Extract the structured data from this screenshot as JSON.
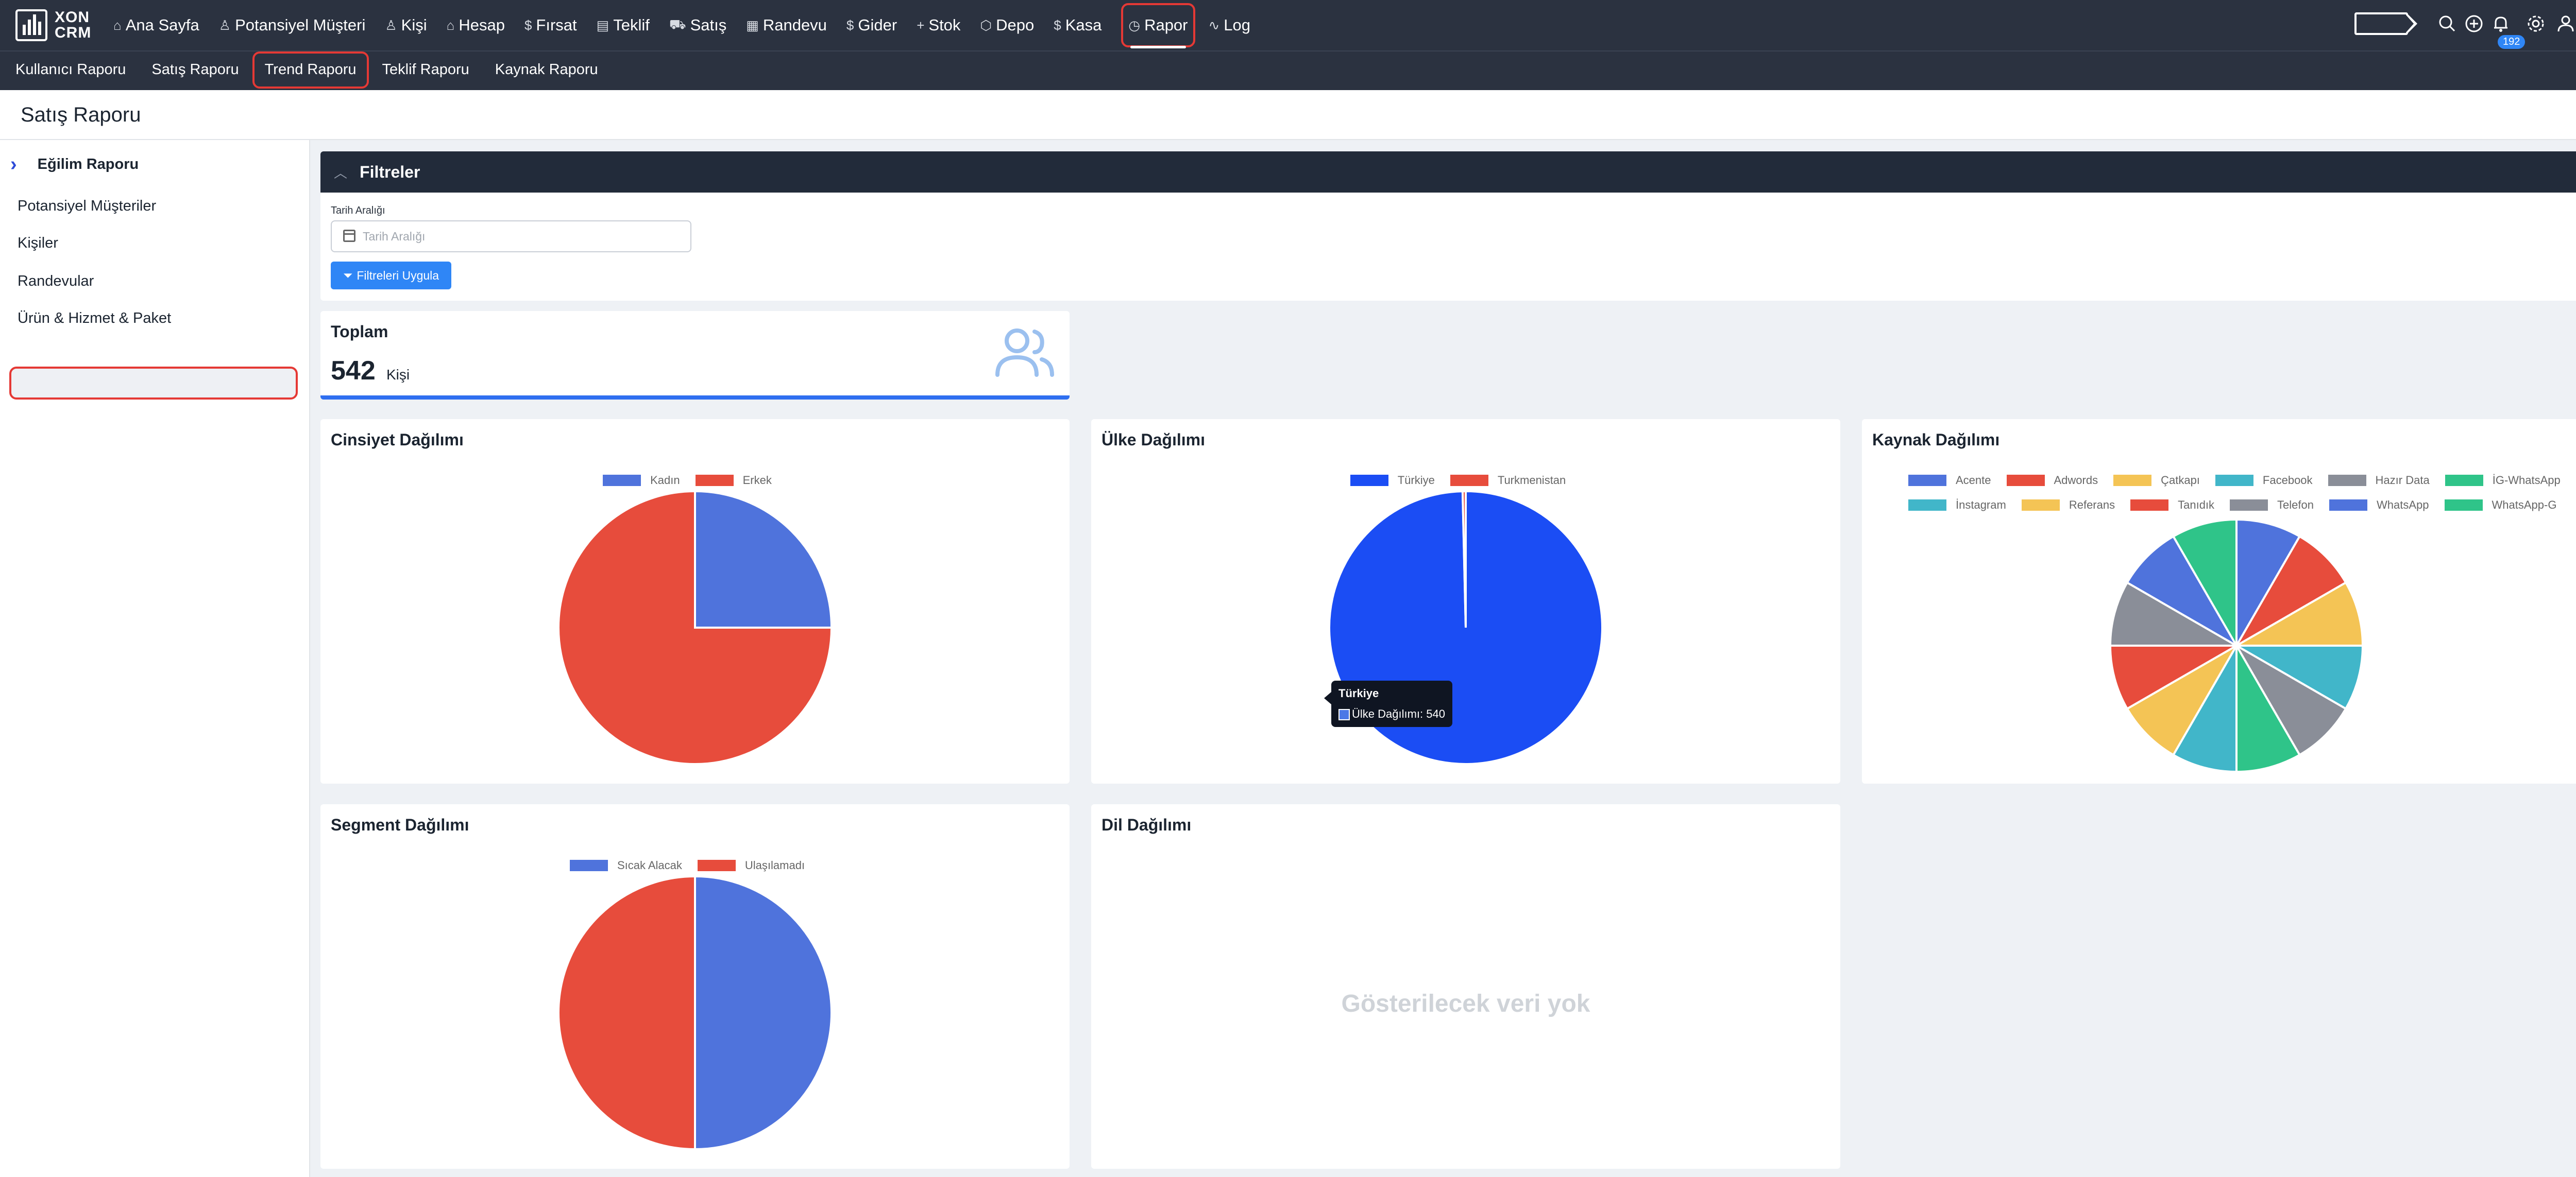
{
  "app": {
    "logo_text_1": "XON",
    "logo_text_2": "CRM"
  },
  "nav": {
    "items": [
      {
        "icon": "⌂",
        "label": "Ana Sayfa"
      },
      {
        "icon": "♙",
        "label": "Potansiyel Müşteri"
      },
      {
        "icon": "♙",
        "label": "Kişi"
      },
      {
        "icon": "⌂",
        "label": "Hesap"
      },
      {
        "icon": "$",
        "label": "Fırsat"
      },
      {
        "icon": "▤",
        "label": "Teklif"
      },
      {
        "icon": "⛟",
        "label": "Satış"
      },
      {
        "icon": "▦",
        "label": "Randevu"
      },
      {
        "icon": "$",
        "label": "Gider"
      },
      {
        "icon": "+",
        "label": "Stok"
      },
      {
        "icon": "⬡",
        "label": "Depo"
      },
      {
        "icon": "$",
        "label": "Kasa"
      },
      {
        "icon": "◷",
        "label": "Rapor"
      },
      {
        "icon": "∿",
        "label": "Log"
      }
    ],
    "notification_count": "192"
  },
  "subnav": {
    "items": [
      "Kullanıcı Raporu",
      "Satış Raporu",
      "Trend Raporu",
      "Teklif Raporu",
      "Kaynak Raporu"
    ]
  },
  "page": {
    "title": "Satış Raporu"
  },
  "sidebar": {
    "header": "Eğilim Raporu",
    "items": [
      "Potansiyel Müşteriler",
      "Kişiler",
      "Randevular",
      "Ürün & Hizmet & Paket"
    ]
  },
  "filters": {
    "title": "Filtreler",
    "date_label": "Tarih Aralığı",
    "date_placeholder": "Tarih Aralığı",
    "apply_button": "Filtreleri Uygula"
  },
  "total": {
    "title": "Toplam",
    "value": "542",
    "unit": "Kişi"
  },
  "colors": {
    "blue": "#4f73dc",
    "red": "#e74c3c",
    "yellow": "#f4c455",
    "cyan": "#41b6c9",
    "gray": "#8a8e98",
    "green": "#2fc489",
    "bright_blue": "#1b4df4"
  },
  "charts": {
    "gender": {
      "title": "Cinsiyet Dağılımı"
    },
    "country": {
      "title": "Ülke Dağılımı",
      "tooltip_title": "Türkiye",
      "tooltip_text": "Ülke Dağılımı: 540"
    },
    "source": {
      "title": "Kaynak Dağılımı"
    },
    "segment": {
      "title": "Segment Dağılımı"
    },
    "language": {
      "title": "Dil Dağılımı",
      "empty_text": "Gösterilecek veri yok"
    }
  },
  "chart_data": [
    {
      "type": "pie",
      "title": "Cinsiyet Dağılımı",
      "categories": [
        "Kadın",
        "Erkek"
      ],
      "values": [
        25,
        75
      ],
      "colors": [
        "#4f73dc",
        "#e74c3c"
      ]
    },
    {
      "type": "pie",
      "title": "Ülke Dağılımı",
      "categories": [
        "Türkiye",
        "Turkmenistan"
      ],
      "values": [
        540,
        2
      ],
      "colors": [
        "#1b4df4",
        "#e74c3c"
      ]
    },
    {
      "type": "pie",
      "title": "Kaynak Dağılımı",
      "categories": [
        "Acente",
        "Adwords",
        "Çatkapı",
        "Facebook",
        "Hazır Data",
        "İG-WhatsApp",
        "İnstagram",
        "Referans",
        "Tanıdık",
        "Telefon",
        "WhatsApp",
        "WhatsApp-G"
      ],
      "values": [
        1,
        1,
        1,
        1,
        1,
        1,
        1,
        1,
        1,
        1,
        1,
        1
      ],
      "colors": [
        "#4f73dc",
        "#e74c3c",
        "#f4c455",
        "#41b6c9",
        "#8a8e98",
        "#2fc489",
        "#41b6c9",
        "#f4c455",
        "#e74c3c",
        "#8a8e98",
        "#4f73dc",
        "#2fc489"
      ]
    },
    {
      "type": "pie",
      "title": "Segment Dağılımı",
      "categories": [
        "Sıcak Alacak",
        "Ulaşılamadı"
      ],
      "values": [
        50,
        50
      ],
      "colors": [
        "#4f73dc",
        "#e74c3c"
      ]
    }
  ]
}
